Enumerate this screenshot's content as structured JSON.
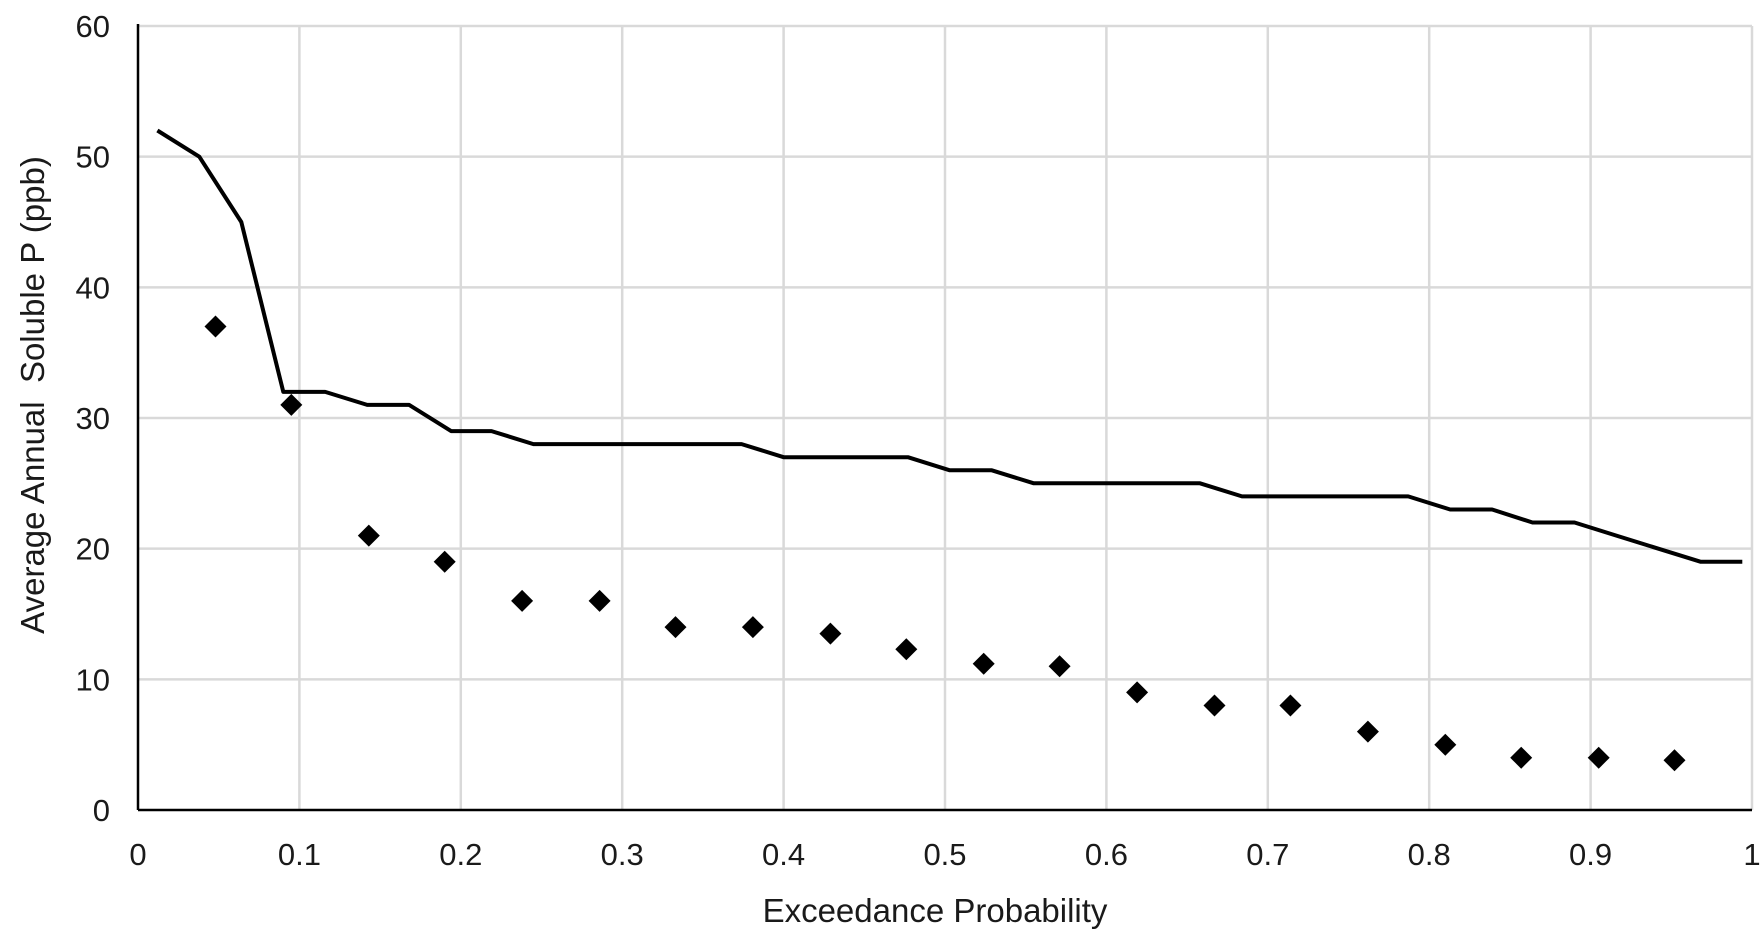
{
  "chart_data": {
    "type": "scatter",
    "title": "",
    "xlabel": "Exceedance Probability",
    "ylabel": "Average Annual  Soluble P (ppb)",
    "xlim": [
      0,
      1
    ],
    "ylim": [
      0,
      60
    ],
    "x_ticks": [
      "0",
      "0.1",
      "0.2",
      "0.3",
      "0.4",
      "0.5",
      "0.6",
      "0.7",
      "0.8",
      "0.9",
      "1"
    ],
    "y_ticks": [
      "0",
      "10",
      "20",
      "30",
      "40",
      "50",
      "60"
    ],
    "grid": true,
    "legend": "none",
    "colors": {
      "line": "#000000",
      "marker": "#000000",
      "grid": "#d9d9d9",
      "axis": "#000000"
    },
    "series": [
      {
        "style": "line",
        "points": [
          [
            0.012,
            52
          ],
          [
            0.038,
            50
          ],
          [
            0.064,
            45
          ],
          [
            0.09,
            32
          ],
          [
            0.116,
            32
          ],
          [
            0.142,
            31
          ],
          [
            0.168,
            31
          ],
          [
            0.194,
            29
          ],
          [
            0.219,
            29
          ],
          [
            0.245,
            28
          ],
          [
            0.271,
            28
          ],
          [
            0.297,
            28
          ],
          [
            0.322,
            28
          ],
          [
            0.348,
            28
          ],
          [
            0.374,
            28
          ],
          [
            0.4,
            27
          ],
          [
            0.426,
            27
          ],
          [
            0.452,
            27
          ],
          [
            0.477,
            27
          ],
          [
            0.503,
            26
          ],
          [
            0.529,
            26
          ],
          [
            0.555,
            25
          ],
          [
            0.581,
            25
          ],
          [
            0.606,
            25
          ],
          [
            0.632,
            25
          ],
          [
            0.658,
            25
          ],
          [
            0.684,
            24
          ],
          [
            0.71,
            24
          ],
          [
            0.735,
            24
          ],
          [
            0.761,
            24
          ],
          [
            0.787,
            24
          ],
          [
            0.813,
            23
          ],
          [
            0.839,
            23
          ],
          [
            0.864,
            22
          ],
          [
            0.89,
            22
          ],
          [
            0.916,
            21
          ],
          [
            0.942,
            20
          ],
          [
            0.968,
            19
          ],
          [
            0.994,
            19
          ]
        ]
      },
      {
        "style": "markers",
        "marker": "diamond",
        "points": [
          [
            0.048,
            37
          ],
          [
            0.095,
            31
          ],
          [
            0.143,
            21
          ],
          [
            0.19,
            19
          ],
          [
            0.238,
            16
          ],
          [
            0.286,
            16
          ],
          [
            0.333,
            14
          ],
          [
            0.381,
            14
          ],
          [
            0.429,
            13.5
          ],
          [
            0.476,
            12.3
          ],
          [
            0.524,
            11.2
          ],
          [
            0.571,
            11
          ],
          [
            0.619,
            9
          ],
          [
            0.667,
            8
          ],
          [
            0.714,
            8
          ],
          [
            0.762,
            6
          ],
          [
            0.81,
            5
          ],
          [
            0.857,
            4
          ],
          [
            0.905,
            4
          ],
          [
            0.952,
            3.8
          ]
        ]
      }
    ]
  }
}
